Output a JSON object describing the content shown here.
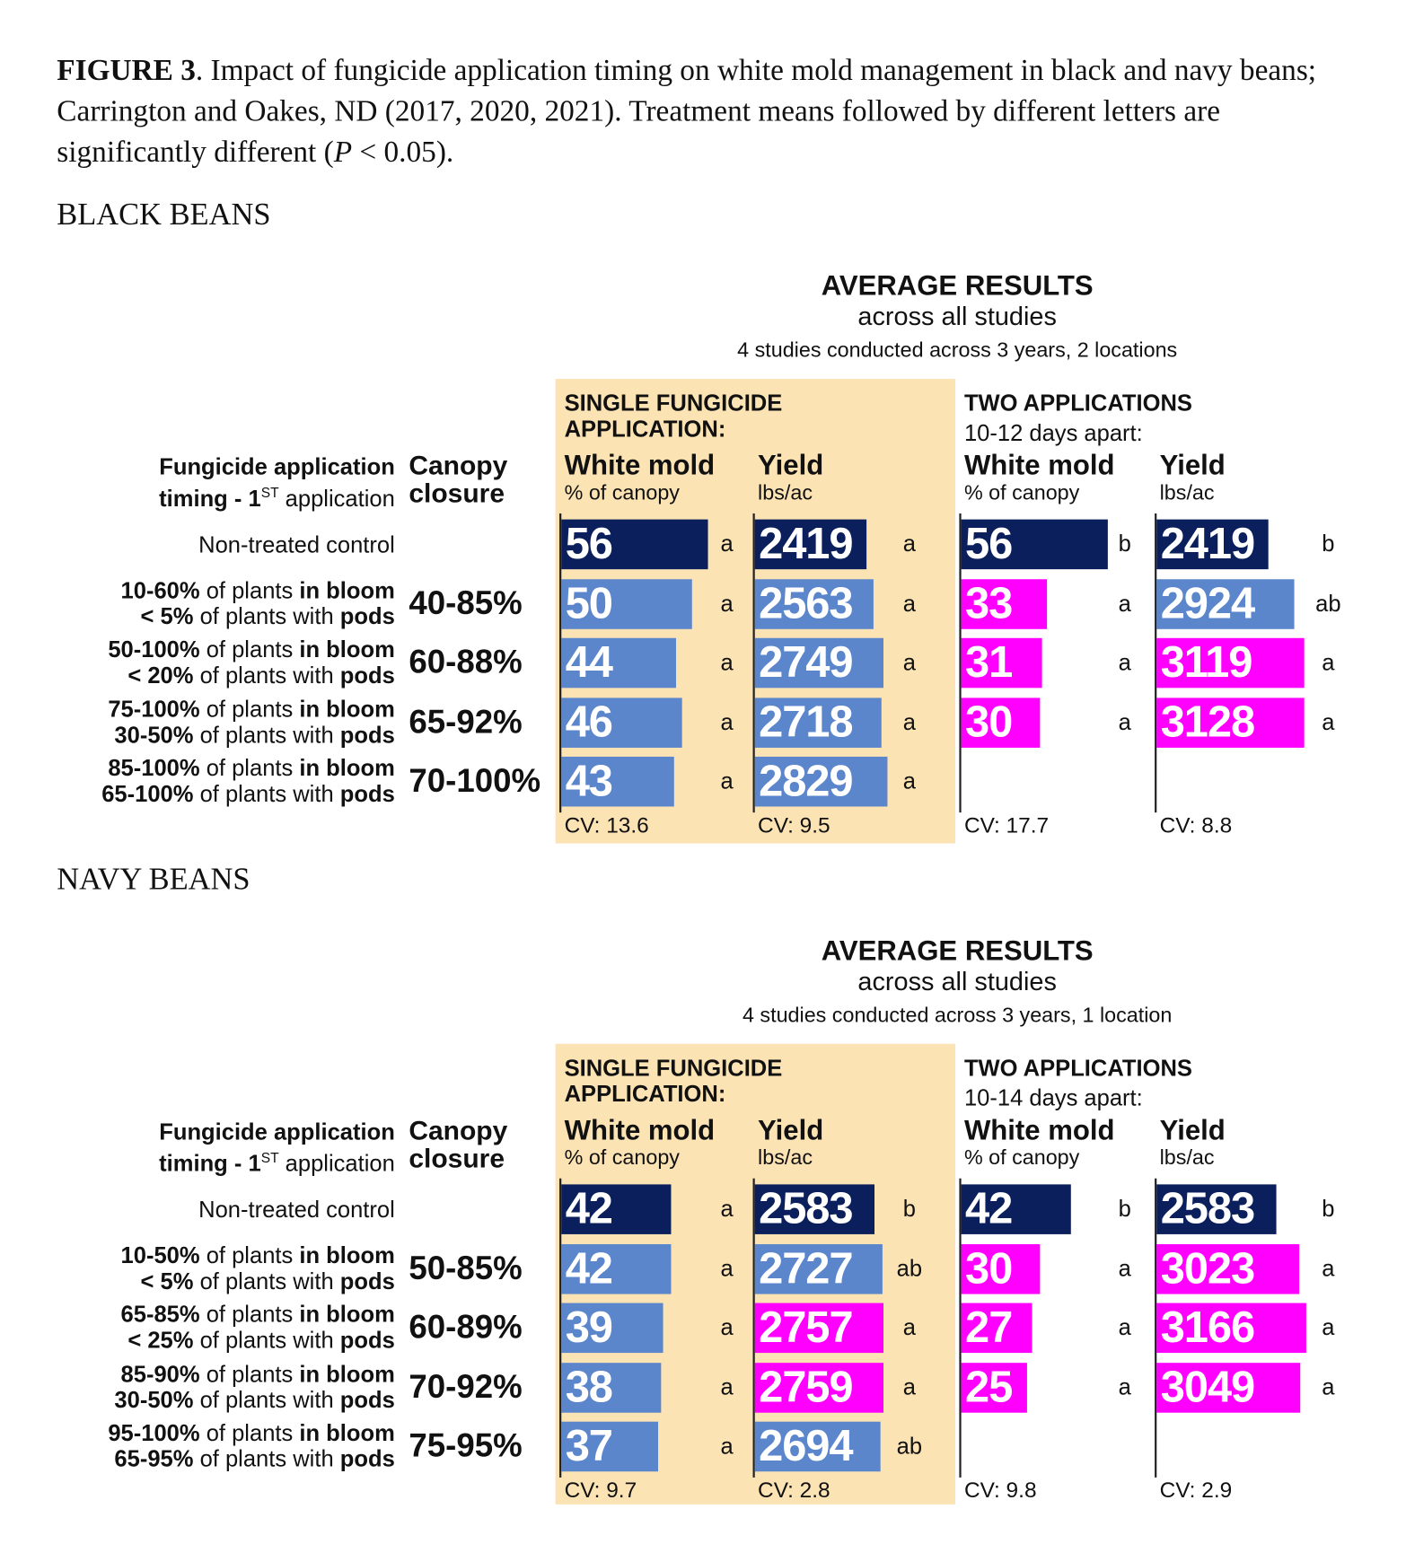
{
  "caption": {
    "label": "FIGURE 3",
    "text": ". Impact of fungicide application timing on white mold management in black and navy beans; Carrington and Oakes, ND (2017, 2020, 2021). Treatment means followed by different letters are significantly different (",
    "p": "P",
    "text_end": " < 0.05)."
  },
  "colors": {
    "control": "#0b1f5c",
    "single_or_ns": "#5b86cc",
    "improved": "#ff00ff",
    "highlight_bg": "#fbe3b4"
  },
  "chart_data": [
    {
      "type": "bar",
      "section": "BLACK BEANS",
      "title": "AVERAGE RESULTS",
      "subtitle": "across all studies",
      "note": "4 studies conducted across 3 years, 2 locations",
      "row_header": [
        "Fungicide application",
        "timing - 1",
        "ST",
        " application"
      ],
      "canopy_header": [
        "Canopy",
        "closure"
      ],
      "single_header": [
        "SINGLE FUNGICIDE",
        "APPLICATION:"
      ],
      "two_header": [
        "TWO APPLICATIONS",
        "10-12 days apart:"
      ],
      "rows": [
        {
          "label": [
            "Non-treated control"
          ],
          "canopy": ""
        },
        {
          "label": [
            [
              "10-60%",
              " of plants ",
              "in bloom"
            ],
            [
              "< 5%",
              " of plants with ",
              "pods"
            ]
          ],
          "canopy": "40-85%"
        },
        {
          "label": [
            [
              "50-100%",
              " of plants ",
              "in bloom"
            ],
            [
              "< 20%",
              " of plants with ",
              "pods"
            ]
          ],
          "canopy": "60-88%"
        },
        {
          "label": [
            [
              "75-100%",
              " of plants ",
              "in bloom"
            ],
            [
              "30-50%",
              " of plants with ",
              "pods"
            ]
          ],
          "canopy": "65-92%"
        },
        {
          "label": [
            [
              "85-100%",
              " of plants ",
              "in bloom"
            ],
            [
              "65-100%",
              " of plants with ",
              "pods"
            ]
          ],
          "canopy": "70-100%"
        }
      ],
      "series": [
        {
          "group": "single",
          "name": "White mold",
          "unit": "% of canopy",
          "values": [
            56,
            50,
            44,
            46,
            43
          ],
          "letters": [
            "a",
            "a",
            "a",
            "a",
            "a"
          ],
          "colors": [
            "control",
            "single_or_ns",
            "single_or_ns",
            "single_or_ns",
            "single_or_ns"
          ],
          "cv": "CV:  13.6"
        },
        {
          "group": "single",
          "name": "Yield",
          "unit": "lbs/ac",
          "values": [
            2419,
            2563,
            2749,
            2718,
            2829
          ],
          "letters": [
            "a",
            "a",
            "a",
            "a",
            "a"
          ],
          "colors": [
            "control",
            "single_or_ns",
            "single_or_ns",
            "single_or_ns",
            "single_or_ns"
          ],
          "cv": "CV:  9.5"
        },
        {
          "group": "two",
          "name": "White mold",
          "unit": "% of canopy",
          "values": [
            56,
            33,
            31,
            30,
            null
          ],
          "letters": [
            "b",
            "a",
            "a",
            "a",
            ""
          ],
          "colors": [
            "control",
            "improved",
            "improved",
            "improved",
            ""
          ],
          "cv": "CV:  17.7"
        },
        {
          "group": "two",
          "name": "Yield",
          "unit": "lbs/ac",
          "values": [
            2419,
            2924,
            3119,
            3128,
            null
          ],
          "letters": [
            "b",
            "ab",
            "a",
            "a",
            ""
          ],
          "colors": [
            "control",
            "single_or_ns",
            "improved",
            "improved",
            ""
          ],
          "cv": "CV:  8.8"
        }
      ]
    },
    {
      "type": "bar",
      "section": "NAVY BEANS",
      "title": "AVERAGE RESULTS",
      "subtitle": "across all studies",
      "note": "4 studies conducted across 3 years, 1 location",
      "row_header": [
        "Fungicide application",
        "timing - 1",
        "ST",
        " application"
      ],
      "canopy_header": [
        "Canopy",
        "closure"
      ],
      "single_header": [
        "SINGLE FUNGICIDE",
        "APPLICATION:"
      ],
      "two_header": [
        "TWO APPLICATIONS",
        "10-14 days apart:"
      ],
      "rows": [
        {
          "label": [
            "Non-treated control"
          ],
          "canopy": ""
        },
        {
          "label": [
            [
              "10-50%",
              " of plants ",
              "in bloom"
            ],
            [
              "< 5%",
              " of plants with ",
              "pods"
            ]
          ],
          "canopy": "50-85%"
        },
        {
          "label": [
            [
              "65-85%",
              " of plants ",
              "in bloom"
            ],
            [
              "< 25%",
              " of plants with ",
              "pods"
            ]
          ],
          "canopy": "60-89%"
        },
        {
          "label": [
            [
              "85-90%",
              " of plants ",
              "in bloom"
            ],
            [
              "30-50%",
              " of plants with ",
              "pods"
            ]
          ],
          "canopy": "70-92%"
        },
        {
          "label": [
            [
              "95-100%",
              " of plants ",
              "in bloom"
            ],
            [
              "65-95%",
              " of plants with ",
              "pods"
            ]
          ],
          "canopy": "75-95%"
        }
      ],
      "series": [
        {
          "group": "single",
          "name": "White mold",
          "unit": "% of canopy",
          "values": [
            42,
            42,
            39,
            38,
            37
          ],
          "letters": [
            "a",
            "a",
            "a",
            "a",
            "a"
          ],
          "colors": [
            "control",
            "single_or_ns",
            "single_or_ns",
            "single_or_ns",
            "single_or_ns"
          ],
          "cv": "CV:  9.7"
        },
        {
          "group": "single",
          "name": "Yield",
          "unit": "lbs/ac",
          "values": [
            2583,
            2727,
            2757,
            2759,
            2694
          ],
          "letters": [
            "b",
            "ab",
            "a",
            "a",
            "ab"
          ],
          "colors": [
            "control",
            "single_or_ns",
            "improved",
            "improved",
            "single_or_ns"
          ],
          "cv": "CV:  2.8"
        },
        {
          "group": "two",
          "name": "White mold",
          "unit": "% of canopy",
          "values": [
            42,
            30,
            27,
            25,
            null
          ],
          "letters": [
            "b",
            "a",
            "a",
            "a",
            ""
          ],
          "colors": [
            "control",
            "improved",
            "improved",
            "improved",
            ""
          ],
          "cv": "CV:  9.8"
        },
        {
          "group": "two",
          "name": "Yield",
          "unit": "lbs/ac",
          "values": [
            2583,
            3023,
            3166,
            3049,
            null
          ],
          "letters": [
            "b",
            "a",
            "a",
            "a",
            ""
          ],
          "colors": [
            "control",
            "improved",
            "improved",
            "improved",
            ""
          ],
          "cv": "CV:  2.9"
        }
      ]
    }
  ]
}
